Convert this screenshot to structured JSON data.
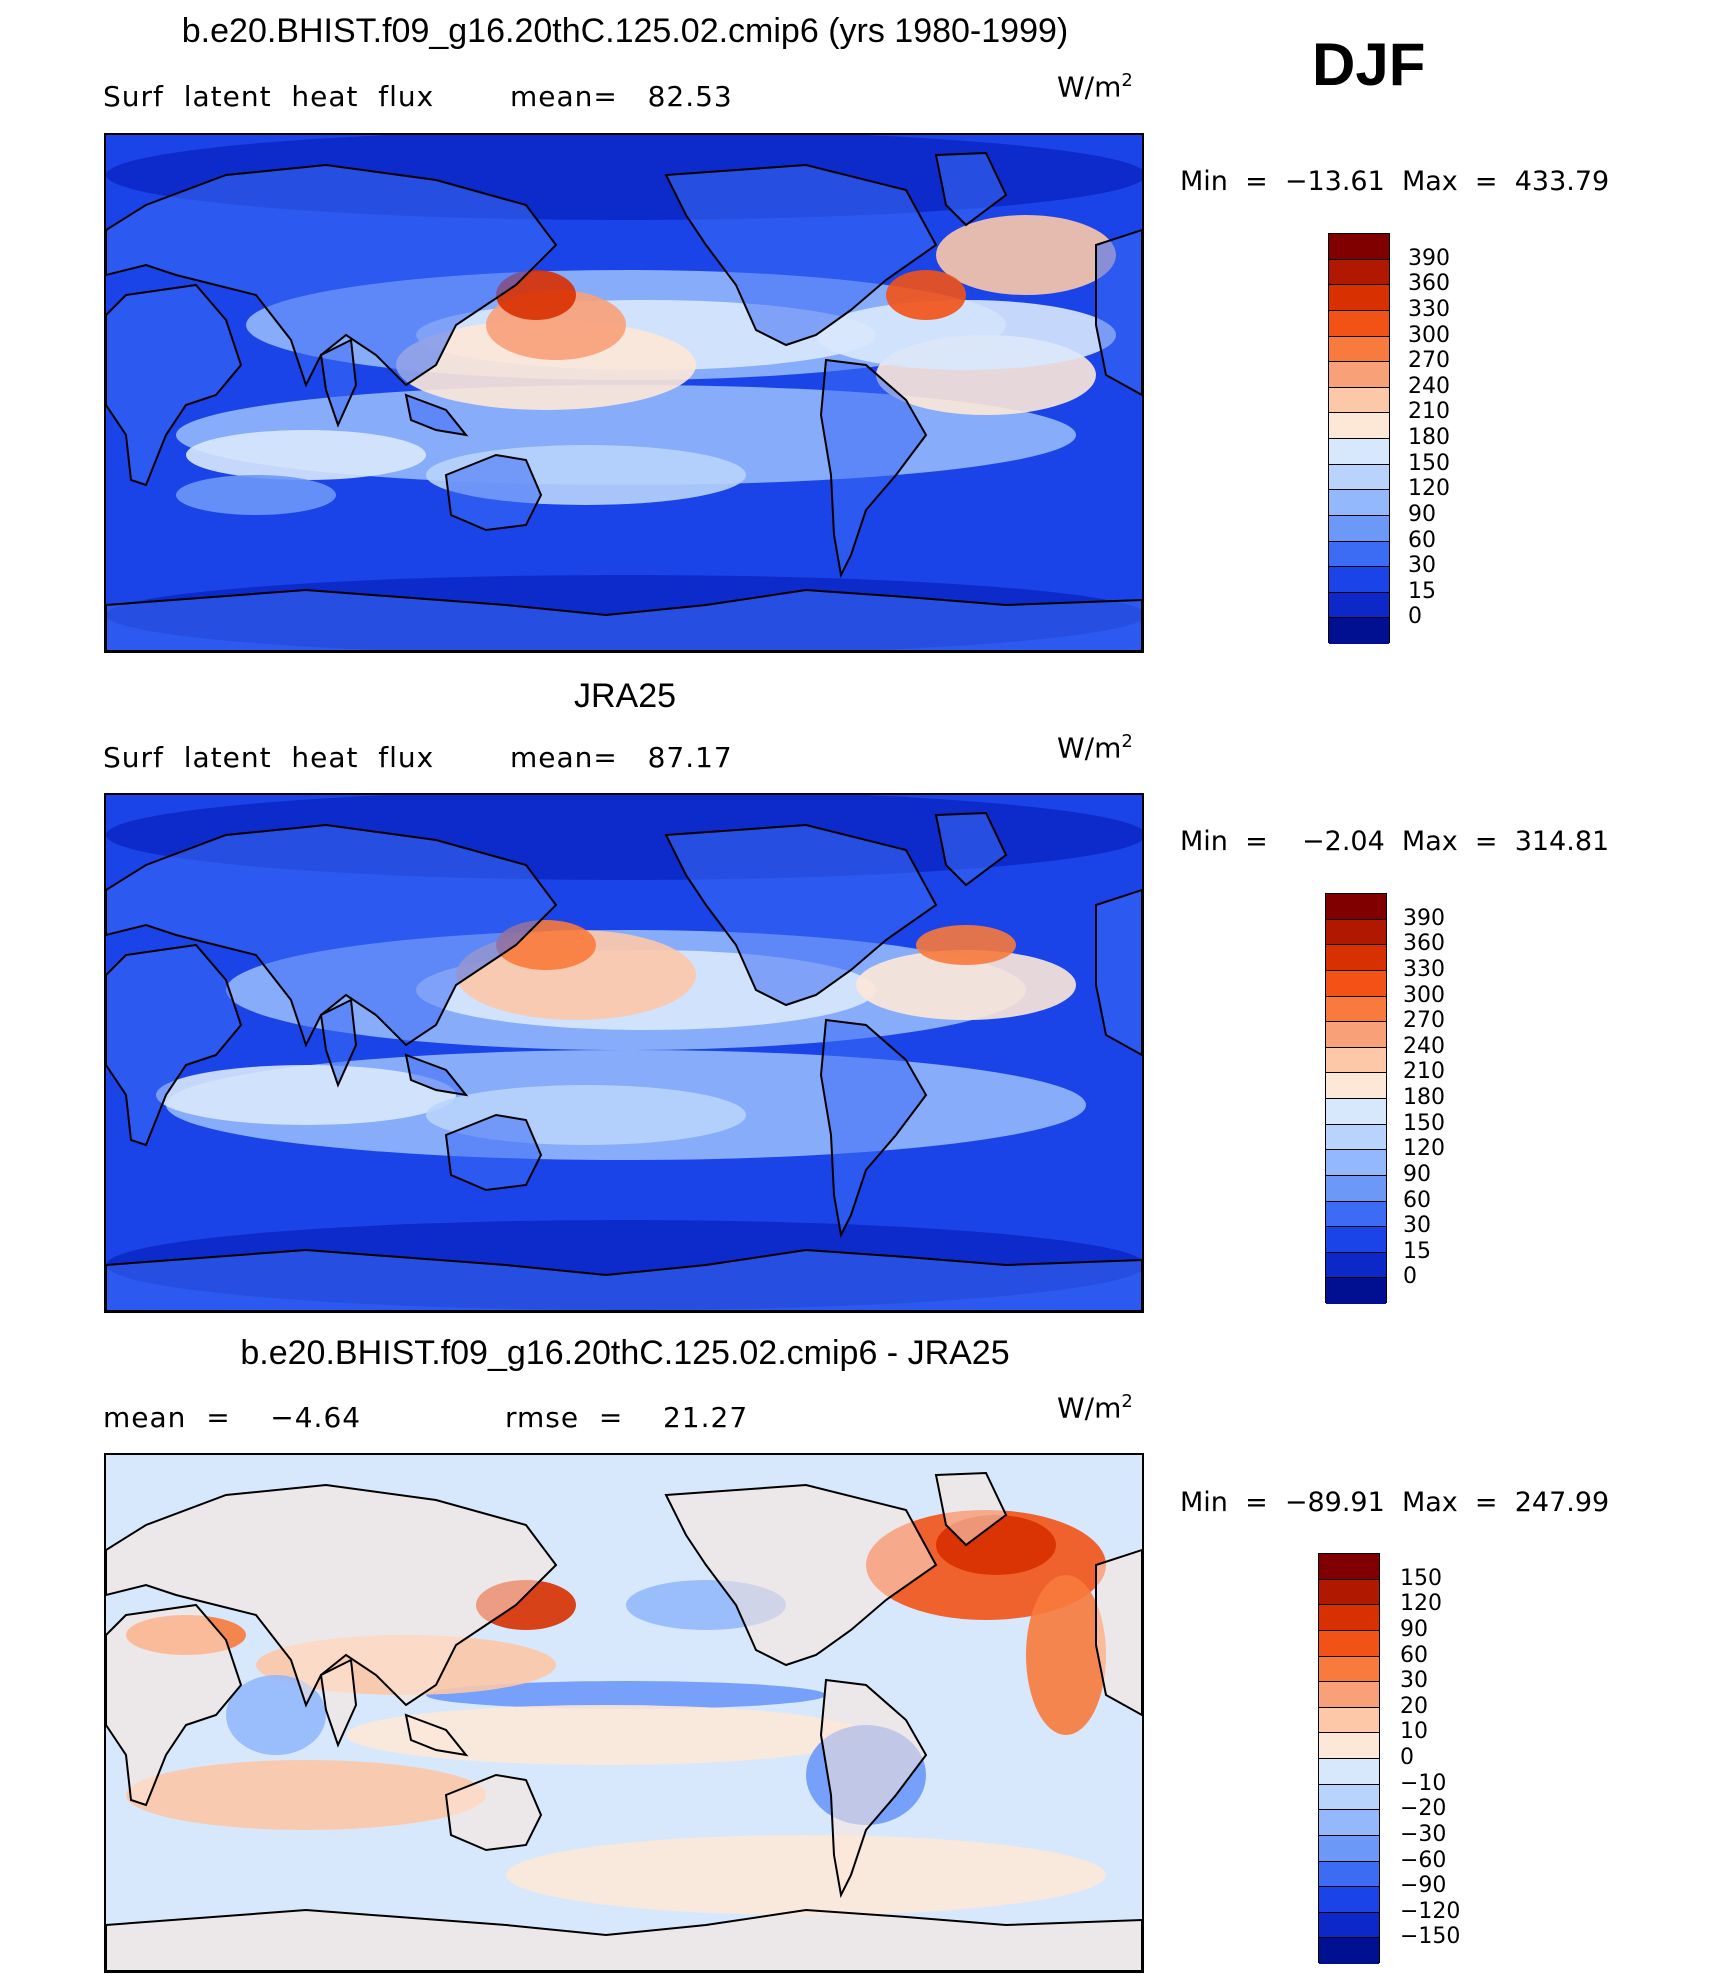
{
  "season": "DJF",
  "panels": [
    {
      "title": "b.e20.BHIST.f09_g16.20thC.125.02.cmip6 (yrs 1980-1999)",
      "left_text": "Surf  latent  heat  flux",
      "right_text": "mean=   82.53",
      "units": "W/m",
      "units_sup": "2",
      "minmax": "Min  =  −13.61  Max  =  433.79",
      "colorbar_labels": [
        "390",
        "360",
        "330",
        "300",
        "270",
        "240",
        "210",
        "180",
        "150",
        "120",
        "90",
        "60",
        "30",
        "15",
        "0"
      ],
      "colors": [
        "#800000",
        "#b01800",
        "#d83000",
        "#f25216",
        "#f87a3c",
        "#f8a078",
        "#fcc8a8",
        "#fde8d8",
        "#d8e8fc",
        "#b8d4fc",
        "#94b8fc",
        "#6c98f8",
        "#3c6cf4",
        "#1a44e8",
        "#0c28c8",
        "#001090"
      ]
    },
    {
      "title": "JRA25",
      "left_text": "Surf  latent  heat  flux",
      "right_text": "mean=   87.17",
      "units": "W/m",
      "units_sup": "2",
      "minmax": "Min  =    −2.04  Max  =  314.81",
      "colorbar_labels": [
        "390",
        "360",
        "330",
        "300",
        "270",
        "240",
        "210",
        "180",
        "150",
        "120",
        "90",
        "60",
        "30",
        "15",
        "0"
      ],
      "colors": [
        "#800000",
        "#b01800",
        "#d83000",
        "#f25216",
        "#f87a3c",
        "#f8a078",
        "#fcc8a8",
        "#fde8d8",
        "#d8e8fc",
        "#b8d4fc",
        "#94b8fc",
        "#6c98f8",
        "#3c6cf4",
        "#1a44e8",
        "#0c28c8",
        "#001090"
      ]
    },
    {
      "title": "b.e20.BHIST.f09_g16.20thC.125.02.cmip6 - JRA25",
      "left_text": "mean  =    −4.64",
      "right_text": "rmse  =    21.27",
      "units": "W/m",
      "units_sup": "2",
      "minmax": "Min  =  −89.91  Max  =  247.99",
      "colorbar_labels": [
        "150",
        "120",
        "90",
        "60",
        "30",
        "20",
        "10",
        "0",
        "−10",
        "−20",
        "−30",
        "−60",
        "−90",
        "−120",
        "−150"
      ],
      "colors": [
        "#800000",
        "#b01800",
        "#d83000",
        "#f25216",
        "#f87a3c",
        "#f8a078",
        "#fcc8a8",
        "#fde8d8",
        "#d8e8fc",
        "#b8d4fc",
        "#94b8fc",
        "#6c98f8",
        "#3c6cf4",
        "#1a44e8",
        "#0c28c8",
        "#001090"
      ]
    }
  ]
}
